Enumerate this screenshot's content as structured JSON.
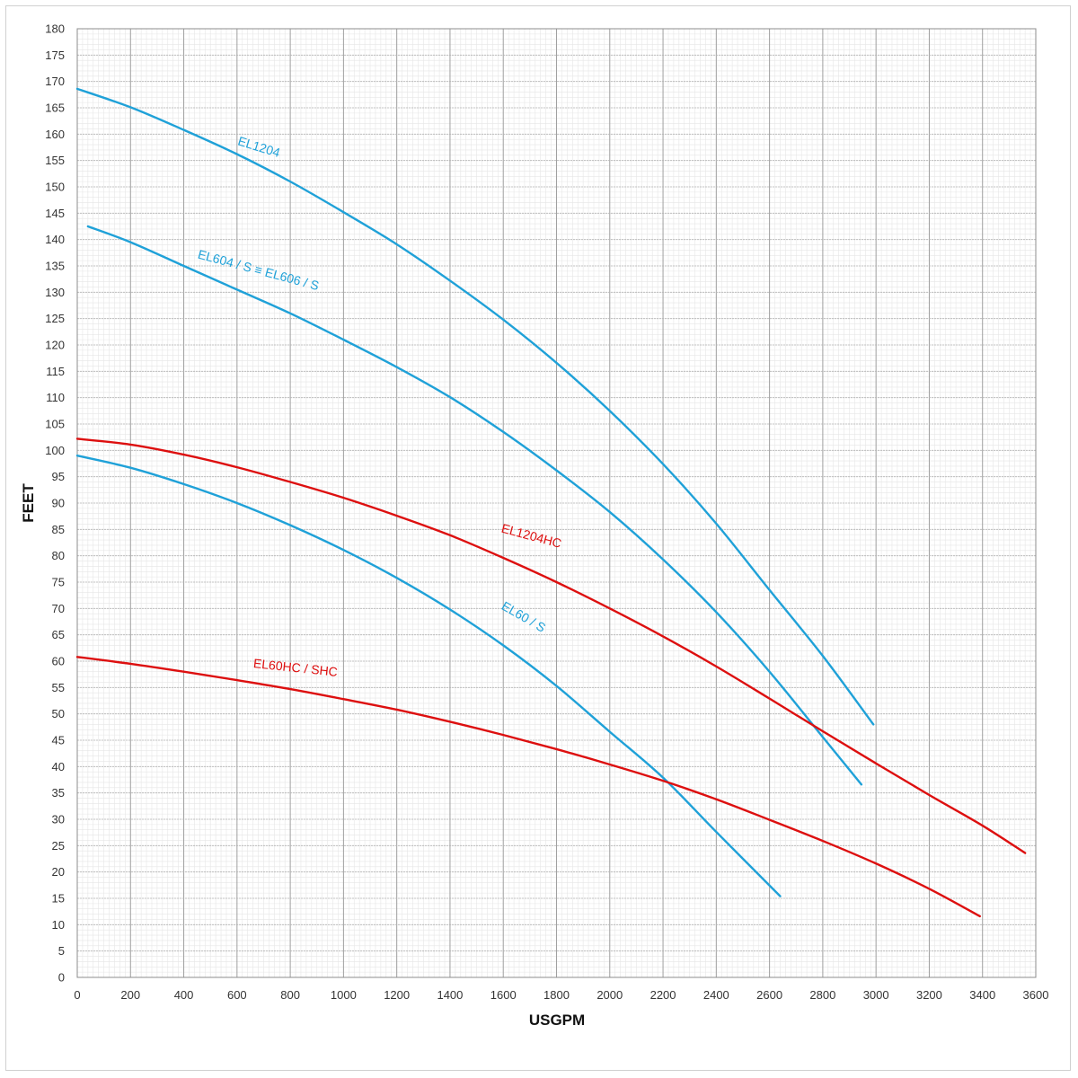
{
  "chart_data": {
    "type": "line",
    "title": "",
    "xlabel": "USGPM",
    "ylabel": "FEET",
    "xlim": [
      0,
      3600
    ],
    "ylim": [
      0,
      180
    ],
    "x_ticks": [
      0,
      200,
      400,
      600,
      800,
      1000,
      1200,
      1400,
      1600,
      1800,
      2000,
      2200,
      2400,
      2600,
      2800,
      3000,
      3200,
      3400,
      3600
    ],
    "y_ticks": [
      0,
      5,
      10,
      15,
      20,
      25,
      30,
      35,
      40,
      45,
      50,
      55,
      60,
      65,
      70,
      75,
      80,
      85,
      90,
      95,
      100,
      105,
      110,
      115,
      120,
      125,
      130,
      135,
      140,
      145,
      150,
      155,
      160,
      165,
      170,
      175,
      180
    ],
    "grid": true,
    "minor_grid": true,
    "colors": {
      "blue": "#1fa1d8",
      "red": "#dd0f0f",
      "grid": "#a0a0a0"
    },
    "series": [
      {
        "name": "EL1204",
        "color": "#1fa1d8",
        "x": [
          0,
          200,
          400,
          600,
          800,
          1000,
          1200,
          1400,
          1600,
          1800,
          2000,
          2200,
          2400,
          2600,
          2800,
          2990
        ],
        "y": [
          168.6,
          165.1,
          160.8,
          156.2,
          151,
          145.2,
          139.1,
          132.2,
          124.8,
          116.6,
          107.5,
          97.4,
          86.1,
          73.5,
          61,
          48
        ]
      },
      {
        "name": "EL604 / S ≡ EL606 / S",
        "color": "#1fa1d8",
        "x": [
          40,
          200,
          400,
          600,
          800,
          1000,
          1200,
          1400,
          1600,
          1800,
          2000,
          2200,
          2400,
          2600,
          2800,
          2945
        ],
        "y": [
          142.5,
          139.5,
          135,
          130.5,
          126,
          121,
          115.8,
          110.1,
          103.5,
          96.2,
          88.3,
          79.3,
          69.3,
          58,
          45.6,
          36.6
        ]
      },
      {
        "name": "EL1204HC",
        "color": "#dd0f0f",
        "x": [
          0,
          200,
          400,
          600,
          800,
          1000,
          1200,
          1400,
          1600,
          1800,
          2000,
          2200,
          2400,
          2600,
          2800,
          3000,
          3200,
          3400,
          3560
        ],
        "y": [
          102.2,
          101.1,
          99.2,
          96.8,
          94,
          91,
          87.6,
          83.9,
          79.6,
          75,
          70,
          64.7,
          59,
          52.9,
          46.7,
          40.6,
          34.6,
          28.8,
          23.6
        ]
      },
      {
        "name": "EL60 / S",
        "color": "#1fa1d8",
        "x": [
          0,
          200,
          400,
          600,
          800,
          1000,
          1200,
          1400,
          1600,
          1800,
          2000,
          2200,
          2400,
          2640
        ],
        "y": [
          99,
          96.7,
          93.6,
          90,
          85.8,
          81.1,
          75.8,
          69.8,
          63,
          55.3,
          46.6,
          37.9,
          27.6,
          15.4
        ]
      },
      {
        "name": "EL60HC / SHC",
        "color": "#dd0f0f",
        "x": [
          0,
          200,
          400,
          600,
          800,
          1000,
          1200,
          1400,
          1600,
          1800,
          2000,
          2200,
          2400,
          2600,
          2800,
          3000,
          3200,
          3390
        ],
        "y": [
          60.8,
          59.5,
          58,
          56.4,
          54.7,
          52.8,
          50.8,
          48.5,
          46,
          43.3,
          40.4,
          37.3,
          33.8,
          29.9,
          25.9,
          21.6,
          16.8,
          11.6
        ]
      }
    ],
    "annotations": [
      {
        "text": "EL1204",
        "series": 0,
        "x": 600,
        "y": 158,
        "angle": 17
      },
      {
        "text": "EL604 / S ≡ EL606 / S",
        "series": 1,
        "x": 450,
        "y": 136.5,
        "angle": 15
      },
      {
        "text": "EL1204HC",
        "series": 2,
        "x": 1590,
        "y": 84.5,
        "angle": 15
      },
      {
        "text": "EL60 / S",
        "series": 3,
        "x": 1590,
        "y": 70,
        "angle": 30
      },
      {
        "text": "EL60HC / SHC",
        "series": 4,
        "x": 660,
        "y": 58.8,
        "angle": 6
      }
    ]
  }
}
